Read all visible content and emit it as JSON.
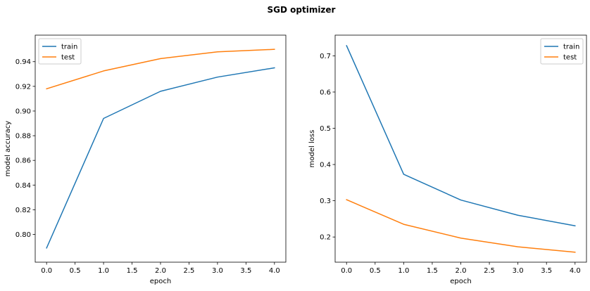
{
  "figure": {
    "title": "SGD optimizer"
  },
  "chart_data": [
    {
      "type": "line",
      "title": "",
      "xlabel": "epoch",
      "ylabel": "model accuracy",
      "x": [
        0,
        1,
        2,
        3,
        4
      ],
      "xlim": [
        -0.2,
        4.2
      ],
      "ylim": [
        0.7775,
        0.9615
      ],
      "xticks": [
        "0.0",
        "0.5",
        "1.0",
        "1.5",
        "2.0",
        "2.5",
        "3.0",
        "3.5",
        "4.0"
      ],
      "xtick_values": [
        0,
        0.5,
        1,
        1.5,
        2,
        2.5,
        3,
        3.5,
        4
      ],
      "yticks": [
        "0.80",
        "0.82",
        "0.84",
        "0.86",
        "0.88",
        "0.90",
        "0.92",
        "0.94"
      ],
      "ytick_values": [
        0.8,
        0.82,
        0.84,
        0.86,
        0.88,
        0.9,
        0.92,
        0.94
      ],
      "grid": false,
      "legend_position": "upper-left",
      "series": [
        {
          "name": "train",
          "color": "#1f77b4",
          "values": [
            0.789,
            0.894,
            0.916,
            0.9275,
            0.935
          ]
        },
        {
          "name": "test",
          "color": "#ff7f0e",
          "values": [
            0.918,
            0.9325,
            0.9425,
            0.948,
            0.95
          ]
        }
      ]
    },
    {
      "type": "line",
      "title": "",
      "xlabel": "epoch",
      "ylabel": "model loss",
      "x": [
        0,
        1,
        2,
        3,
        4
      ],
      "xlim": [
        -0.2,
        4.2
      ],
      "ylim": [
        0.1305,
        0.757
      ],
      "xticks": [
        "0.0",
        "0.5",
        "1.0",
        "1.5",
        "2.0",
        "2.5",
        "3.0",
        "3.5",
        "4.0"
      ],
      "xtick_values": [
        0,
        0.5,
        1,
        1.5,
        2,
        2.5,
        3,
        3.5,
        4
      ],
      "yticks": [
        "0.2",
        "0.3",
        "0.4",
        "0.5",
        "0.6",
        "0.7"
      ],
      "ytick_values": [
        0.2,
        0.3,
        0.4,
        0.5,
        0.6,
        0.7
      ],
      "grid": false,
      "legend_position": "upper-right",
      "series": [
        {
          "name": "train",
          "color": "#1f77b4",
          "values": [
            0.728,
            0.373,
            0.302,
            0.26,
            0.231
          ]
        },
        {
          "name": "test",
          "color": "#ff7f0e",
          "values": [
            0.303,
            0.235,
            0.197,
            0.173,
            0.158
          ]
        }
      ]
    }
  ]
}
